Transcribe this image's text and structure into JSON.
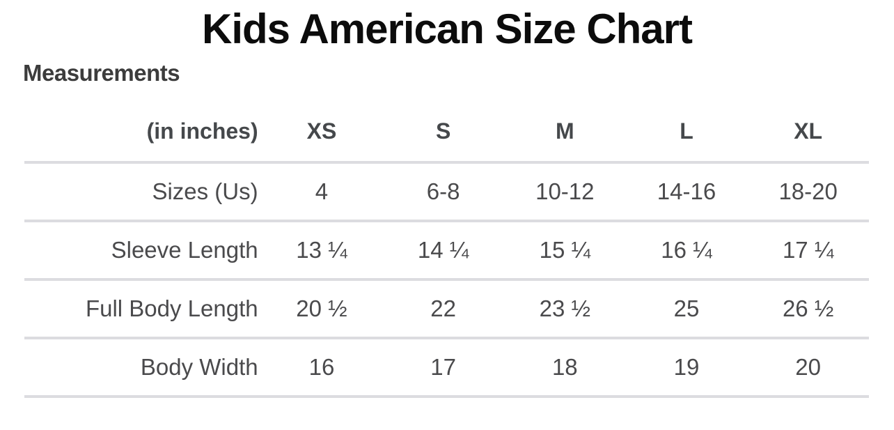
{
  "page": {
    "title": "Kids American Size Chart"
  },
  "section": {
    "heading": "Measurements"
  },
  "size_table": {
    "unit_header": "(in inches)",
    "columns": [
      "XS",
      "S",
      "M",
      "L",
      "XL"
    ],
    "rows": [
      {
        "label": "Sizes (Us)",
        "values": [
          "4",
          "6-8",
          "10-12",
          "14-16",
          "18-20"
        ]
      },
      {
        "label": "Sleeve Length",
        "values": [
          "13 ¼",
          "14 ¼",
          "15 ¼",
          "16 ¼",
          "17 ¼"
        ]
      },
      {
        "label": "Full Body Length",
        "values": [
          "20 ½",
          "22",
          "23 ½",
          "25",
          "26 ½"
        ]
      },
      {
        "label": "Body Width",
        "values": [
          "16",
          "17",
          "18",
          "19",
          "20"
        ]
      }
    ]
  },
  "colors": {
    "background": "#ffffff",
    "title_text": "#0c0c0c",
    "heading_text": "#3c3c3c",
    "header_text": "#45484b",
    "body_text": "#4a4a4c",
    "divider": "#dcdce0"
  }
}
